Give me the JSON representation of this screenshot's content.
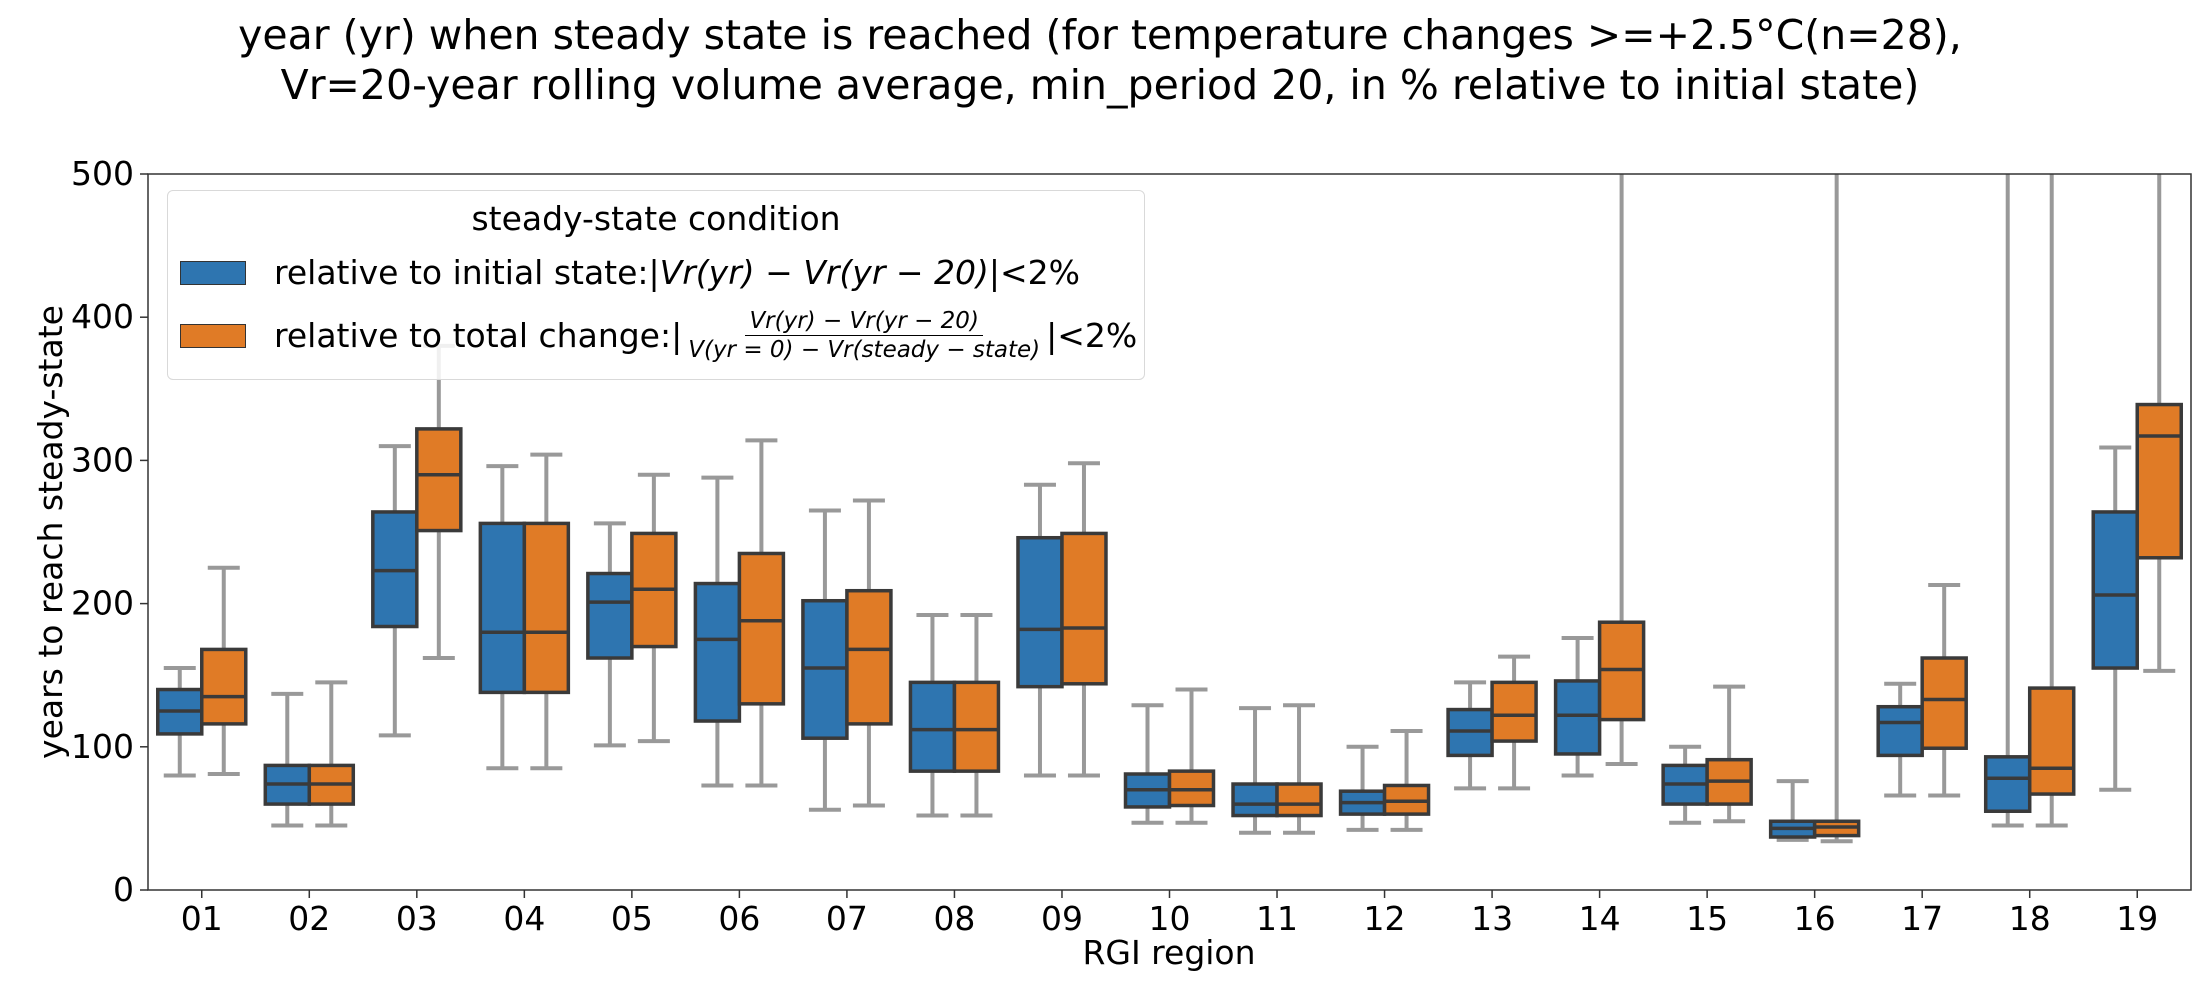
{
  "title_lines": [
    "year (yr) when steady state is reached (for temperature changes >=+2.5°C(n=28),",
    "Vr=20-year rolling volume average, min_period 20, in % relative to initial state)"
  ],
  "legend": {
    "title": "steady-state condition",
    "items": [
      {
        "prefix": "relative to initial state: ",
        "math": "|Vr(yr) − Vr(yr − 20)|",
        "suffix": "<2%",
        "color": "#2e75b0"
      },
      {
        "prefix": "relative to total change: ",
        "num": "Vr(yr) − Vr(yr − 20)",
        "den": "V(yr = 0) − Vr(steady − state)",
        "suffix": "<2%",
        "color": "#e07b26"
      }
    ]
  },
  "chart_data": {
    "type": "boxplot",
    "xlabel": "RGI region",
    "ylabel": "years to reach steady-state",
    "ylim": [
      0,
      500
    ],
    "yticks": [
      0,
      100,
      200,
      300,
      400,
      500
    ],
    "categories": [
      "01",
      "02",
      "03",
      "04",
      "05",
      "06",
      "07",
      "08",
      "09",
      "10",
      "11",
      "12",
      "13",
      "14",
      "15",
      "16",
      "17",
      "18",
      "19"
    ],
    "series": [
      {
        "name": "relative to initial state: |Vr(yr) − Vr(yr − 20)|<2%",
        "color": "#2e75b0",
        "boxes": [
          [
            80,
            109,
            125,
            140,
            155
          ],
          [
            45,
            60,
            74,
            87,
            137
          ],
          [
            108,
            184,
            223,
            264,
            310
          ],
          [
            85,
            138,
            180,
            256,
            296
          ],
          [
            101,
            162,
            201,
            221,
            256
          ],
          [
            73,
            118,
            175,
            214,
            288
          ],
          [
            56,
            106,
            155,
            202,
            265
          ],
          [
            52,
            83,
            112,
            145,
            192
          ],
          [
            80,
            142,
            182,
            246,
            283
          ],
          [
            47,
            58,
            70,
            81,
            129
          ],
          [
            40,
            52,
            60,
            74,
            127
          ],
          [
            42,
            53,
            61,
            69,
            100
          ],
          [
            71,
            94,
            111,
            126,
            145
          ],
          [
            80,
            95,
            122,
            146,
            176
          ],
          [
            47,
            60,
            74,
            87,
            100
          ],
          [
            35,
            37,
            43,
            48,
            76
          ],
          [
            66,
            94,
            117,
            128,
            144
          ],
          [
            45,
            55,
            78,
            93,
            500
          ],
          [
            70,
            155,
            206,
            264,
            309
          ]
        ]
      },
      {
        "name": "relative to total change: |(Vr(yr) − Vr(yr − 20)) / (V(yr = 0) − Vr(steady − state))|<2%",
        "color": "#e07b26",
        "boxes": [
          [
            81,
            116,
            135,
            168,
            225
          ],
          [
            45,
            60,
            74,
            87,
            145
          ],
          [
            162,
            251,
            290,
            322,
            380
          ],
          [
            85,
            138,
            180,
            256,
            304
          ],
          [
            104,
            170,
            210,
            249,
            290
          ],
          [
            73,
            130,
            188,
            235,
            314
          ],
          [
            59,
            116,
            168,
            209,
            272
          ],
          [
            52,
            83,
            112,
            145,
            192
          ],
          [
            80,
            144,
            183,
            249,
            298
          ],
          [
            47,
            59,
            70,
            83,
            140
          ],
          [
            40,
            52,
            60,
            74,
            129
          ],
          [
            42,
            53,
            62,
            73,
            111
          ],
          [
            71,
            104,
            122,
            145,
            163
          ],
          [
            88,
            119,
            154,
            187,
            500
          ],
          [
            48,
            60,
            76,
            91,
            142
          ],
          [
            34,
            38,
            44,
            48,
            500
          ],
          [
            66,
            99,
            133,
            162,
            213
          ],
          [
            45,
            67,
            85,
            141,
            500
          ],
          [
            153,
            232,
            317,
            339,
            500
          ]
        ]
      }
    ],
    "grid": false,
    "legend_position": "top-left"
  }
}
